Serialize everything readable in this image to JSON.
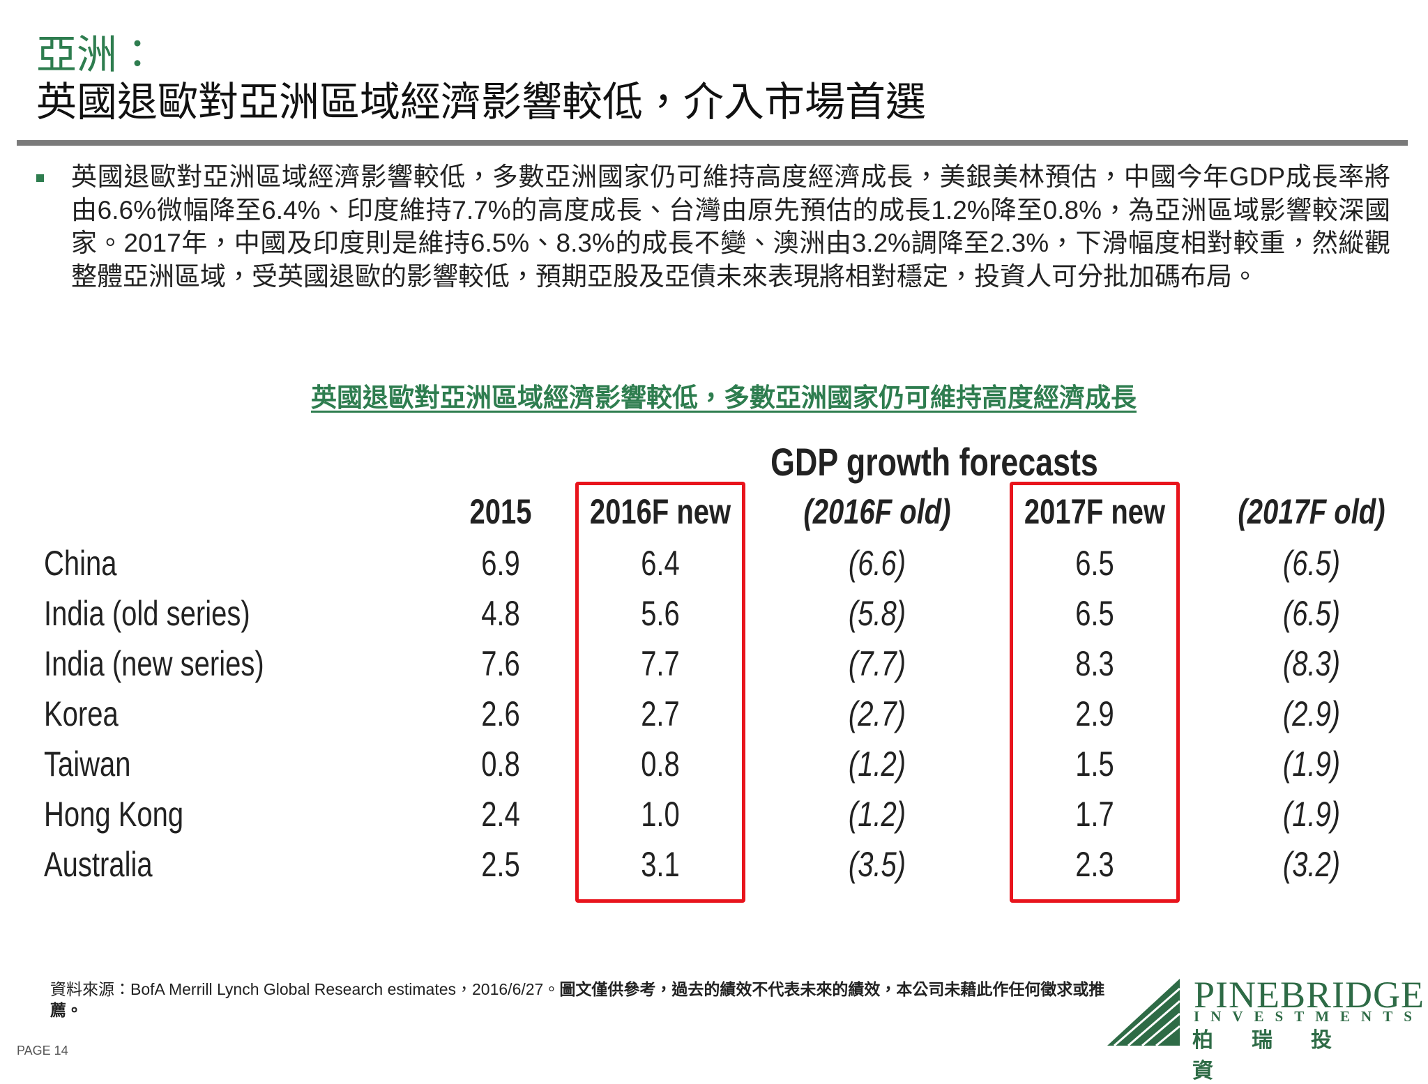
{
  "header": {
    "section": "亞洲：",
    "title": "英國退歐對亞洲區域經濟影響較低，介入市場首選"
  },
  "bullets": [
    "英國退歐對亞洲區域經濟影響較低，多數亞洲國家仍可維持高度經濟成長，美銀美林預估，中國今年GDP成長率將由6.6%微幅降至6.4%、印度維持7.7%的高度成長、台灣由原先預估的成長1.2%降至0.8%，為亞洲區域影響較深國家。2017年，中國及印度則是維持6.5%、8.3%的成長不變、澳洲由3.2%調降至2.3%，下滑幅度相對較重，然縱觀整體亞洲區域，受英國退歐的影響較低，預期亞股及亞債未來表現將相對穩定，投資人可分批加碼布局。"
  ],
  "table": {
    "heading": "英國退歐對亞洲區域經濟影響較低，多數亞洲國家仍可維持高度經濟成長",
    "caption": "GDP growth forecasts",
    "columns": [
      "2015",
      "2016F new",
      "(2016F old)",
      "2017F new",
      "(2017F old)"
    ],
    "highlighted_columns": [
      1,
      3
    ],
    "italic_columns": [
      2,
      4
    ],
    "rows": [
      {
        "label": "China",
        "cells": [
          "6.9",
          "6.4",
          "(6.6)",
          "6.5",
          "(6.5)"
        ]
      },
      {
        "label": "India (old series)",
        "cells": [
          "4.8",
          "5.6",
          "(5.8)",
          "6.5",
          "(6.5)"
        ]
      },
      {
        "label": "India (new series)",
        "cells": [
          "7.6",
          "7.7",
          "(7.7)",
          "8.3",
          "(8.3)"
        ]
      },
      {
        "label": "Korea",
        "cells": [
          "2.6",
          "2.7",
          "(2.7)",
          "2.9",
          "(2.9)"
        ]
      },
      {
        "label": "Taiwan",
        "cells": [
          "0.8",
          "0.8",
          "(1.2)",
          "1.5",
          "(1.9)"
        ]
      },
      {
        "label": "Hong Kong",
        "cells": [
          "2.4",
          "1.0",
          "(1.2)",
          "1.7",
          "(1.9)"
        ]
      },
      {
        "label": "Australia",
        "cells": [
          "2.5",
          "3.1",
          "(3.5)",
          "2.3",
          "(3.2)"
        ]
      }
    ]
  },
  "footer": {
    "source": "資料來源：BofA Merrill Lynch Global Research estimates，2016/6/27。",
    "disclaimer": "圖文僅供參考，過去的績效不代表未來的績效，本公司未藉此作任何徵求或推薦。",
    "page": "PAGE 14"
  },
  "logo": {
    "name": "PINEBRIDGE",
    "sub": "INVESTMENTS",
    "chinese": "柏瑞投資"
  }
}
